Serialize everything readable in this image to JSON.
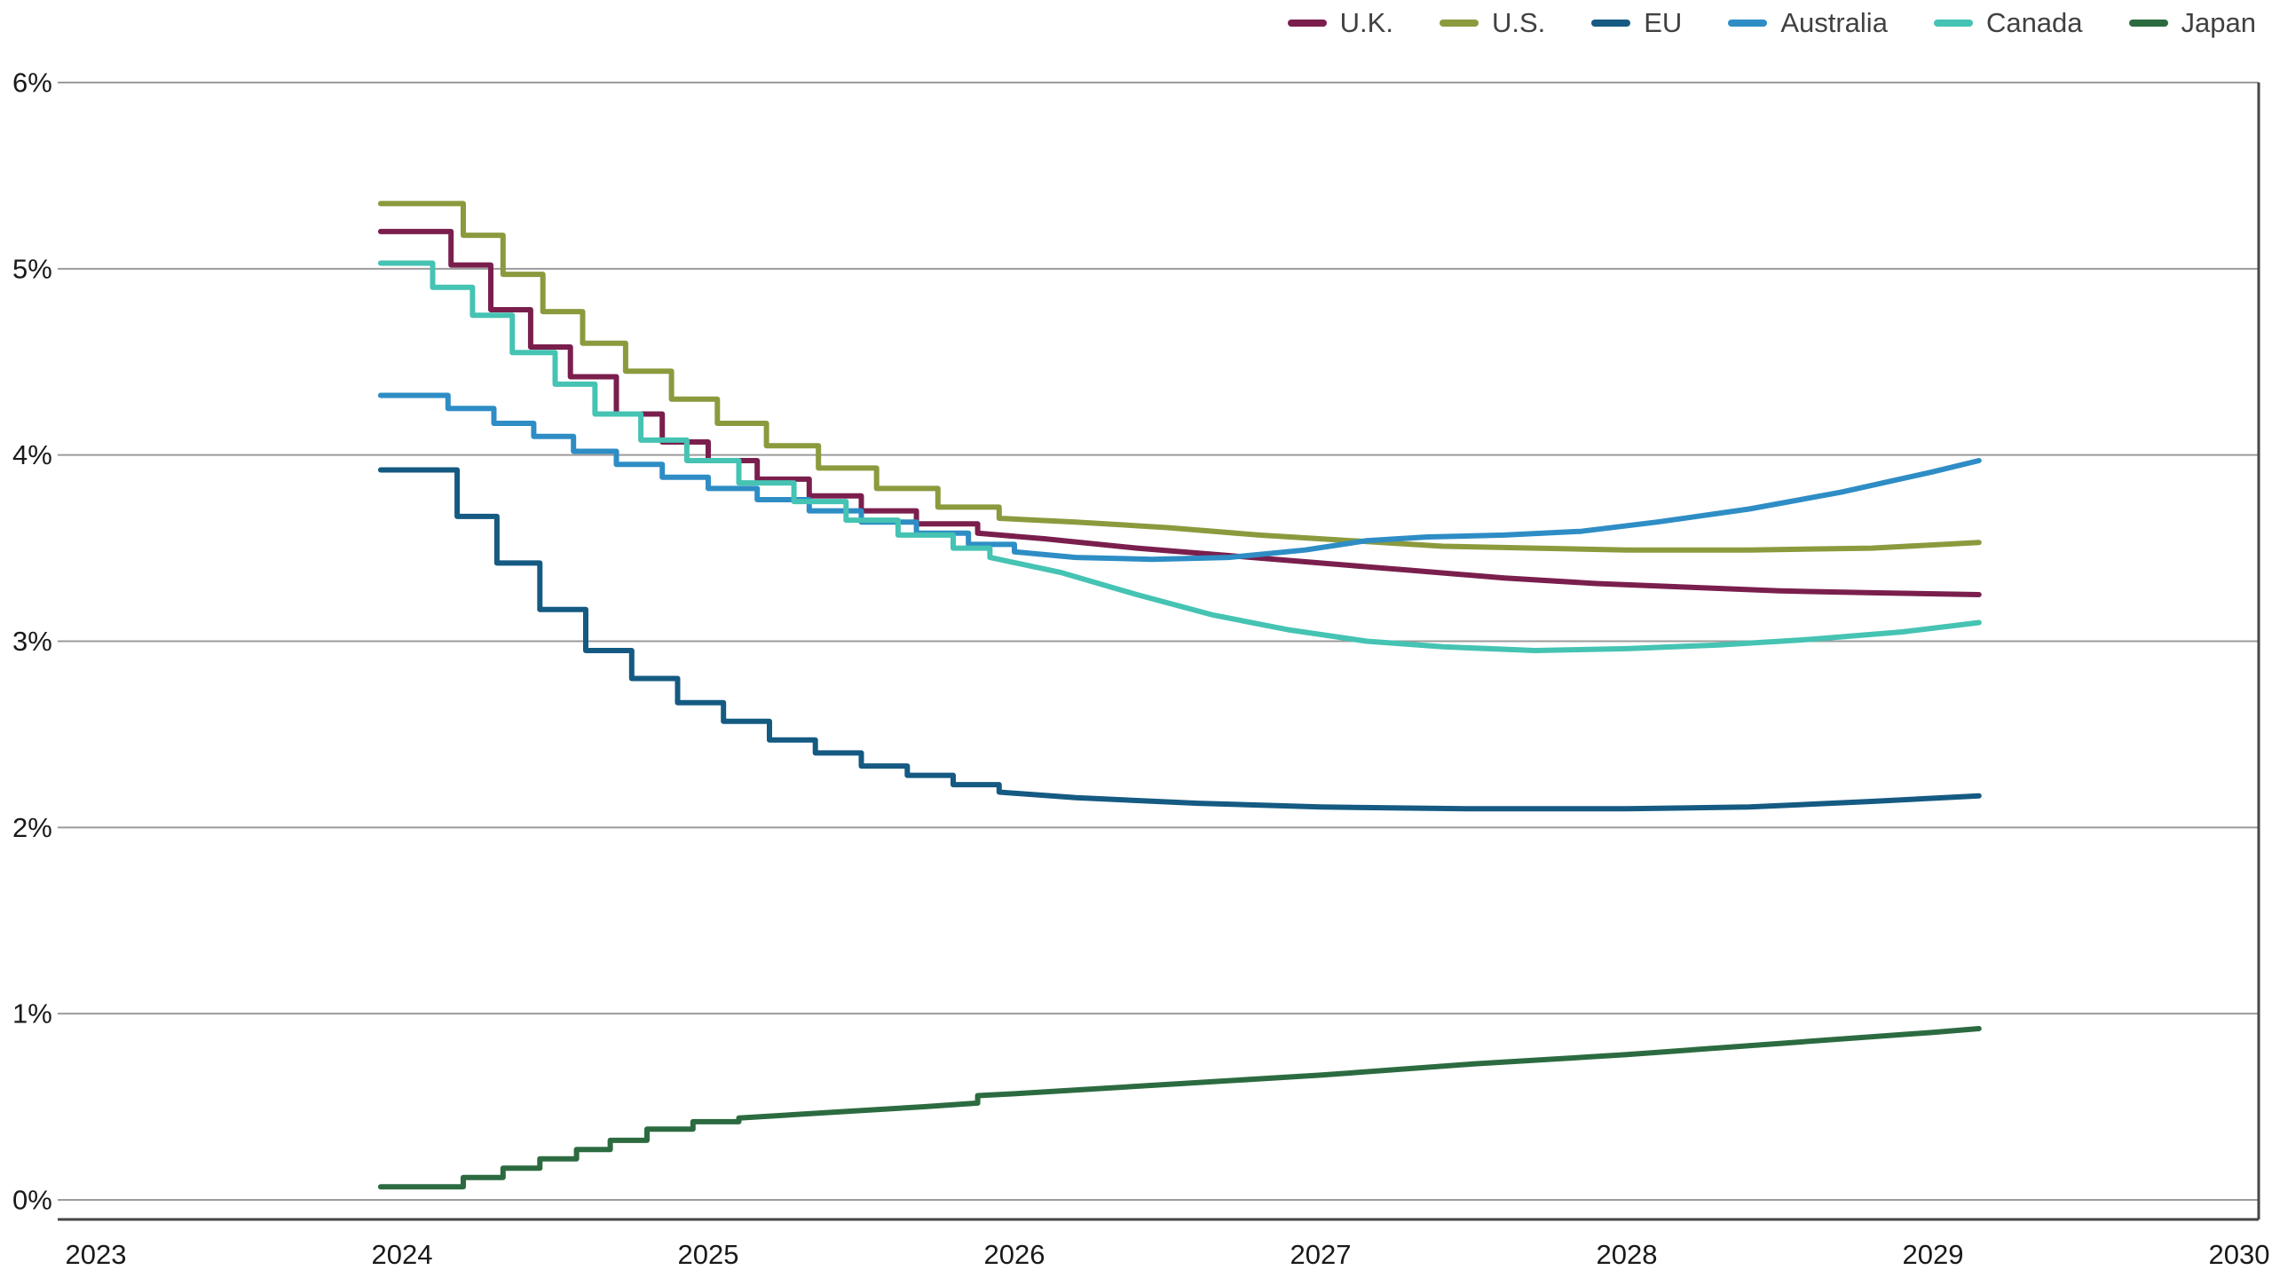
{
  "chart_data": {
    "type": "line",
    "title": "",
    "xlabel": "",
    "ylabel": "",
    "grid": true,
    "legend_position": "top-right",
    "x_axis": {
      "min": 2023,
      "max": 2030,
      "ticks": [
        2023,
        2024,
        2025,
        2026,
        2027,
        2028,
        2029,
        2030
      ]
    },
    "y_axis": {
      "min": 0,
      "max": 6,
      "ticks": [
        {
          "value": 0,
          "label": "0%"
        },
        {
          "value": 1,
          "label": "1%"
        },
        {
          "value": 2,
          "label": "2%"
        },
        {
          "value": 3,
          "label": "3%"
        },
        {
          "value": 4,
          "label": "4%"
        },
        {
          "value": 5,
          "label": "5%"
        },
        {
          "value": 6,
          "label": "6%"
        }
      ]
    },
    "series": [
      {
        "name": "U.K.",
        "color": "#7a1f4d",
        "points": [
          [
            2023.93,
            5.2
          ],
          [
            2024.16,
            5.2
          ],
          [
            2024.16,
            5.02
          ],
          [
            2024.29,
            5.02
          ],
          [
            2024.29,
            4.78
          ],
          [
            2024.42,
            4.78
          ],
          [
            2024.42,
            4.58
          ],
          [
            2024.55,
            4.58
          ],
          [
            2024.55,
            4.42
          ],
          [
            2024.7,
            4.42
          ],
          [
            2024.7,
            4.22
          ],
          [
            2024.85,
            4.22
          ],
          [
            2024.85,
            4.07
          ],
          [
            2025.0,
            4.07
          ],
          [
            2025.0,
            3.97
          ],
          [
            2025.16,
            3.97
          ],
          [
            2025.16,
            3.87
          ],
          [
            2025.33,
            3.87
          ],
          [
            2025.33,
            3.78
          ],
          [
            2025.5,
            3.78
          ],
          [
            2025.5,
            3.7
          ],
          [
            2025.68,
            3.7
          ],
          [
            2025.68,
            3.63
          ],
          [
            2025.88,
            3.63
          ],
          [
            2025.88,
            3.58
          ],
          [
            2026.1,
            3.55
          ],
          [
            2026.4,
            3.5
          ],
          [
            2026.7,
            3.46
          ],
          [
            2027.0,
            3.42
          ],
          [
            2027.3,
            3.38
          ],
          [
            2027.6,
            3.34
          ],
          [
            2027.9,
            3.31
          ],
          [
            2028.2,
            3.29
          ],
          [
            2028.5,
            3.27
          ],
          [
            2028.8,
            3.26
          ],
          [
            2029.15,
            3.25
          ]
        ]
      },
      {
        "name": "U.S.",
        "color": "#8c9a3e",
        "points": [
          [
            2023.93,
            5.35
          ],
          [
            2024.2,
            5.35
          ],
          [
            2024.2,
            5.18
          ],
          [
            2024.33,
            5.18
          ],
          [
            2024.33,
            4.97
          ],
          [
            2024.46,
            4.97
          ],
          [
            2024.46,
            4.77
          ],
          [
            2024.59,
            4.77
          ],
          [
            2024.59,
            4.6
          ],
          [
            2024.73,
            4.6
          ],
          [
            2024.73,
            4.45
          ],
          [
            2024.88,
            4.45
          ],
          [
            2024.88,
            4.3
          ],
          [
            2025.03,
            4.3
          ],
          [
            2025.03,
            4.17
          ],
          [
            2025.19,
            4.17
          ],
          [
            2025.19,
            4.05
          ],
          [
            2025.36,
            4.05
          ],
          [
            2025.36,
            3.93
          ],
          [
            2025.55,
            3.93
          ],
          [
            2025.55,
            3.82
          ],
          [
            2025.75,
            3.82
          ],
          [
            2025.75,
            3.72
          ],
          [
            2025.95,
            3.72
          ],
          [
            2025.95,
            3.66
          ],
          [
            2026.2,
            3.64
          ],
          [
            2026.5,
            3.61
          ],
          [
            2026.8,
            3.57
          ],
          [
            2027.1,
            3.54
          ],
          [
            2027.4,
            3.51
          ],
          [
            2027.7,
            3.5
          ],
          [
            2028.0,
            3.49
          ],
          [
            2028.4,
            3.49
          ],
          [
            2028.8,
            3.5
          ],
          [
            2029.15,
            3.53
          ]
        ]
      },
      {
        "name": "EU",
        "color": "#155a82",
        "points": [
          [
            2023.93,
            3.92
          ],
          [
            2024.18,
            3.92
          ],
          [
            2024.18,
            3.67
          ],
          [
            2024.31,
            3.67
          ],
          [
            2024.31,
            3.42
          ],
          [
            2024.45,
            3.42
          ],
          [
            2024.45,
            3.17
          ],
          [
            2024.6,
            3.17
          ],
          [
            2024.6,
            2.95
          ],
          [
            2024.75,
            2.95
          ],
          [
            2024.75,
            2.8
          ],
          [
            2024.9,
            2.8
          ],
          [
            2024.9,
            2.67
          ],
          [
            2025.05,
            2.67
          ],
          [
            2025.05,
            2.57
          ],
          [
            2025.2,
            2.57
          ],
          [
            2025.2,
            2.47
          ],
          [
            2025.35,
            2.47
          ],
          [
            2025.35,
            2.4
          ],
          [
            2025.5,
            2.4
          ],
          [
            2025.5,
            2.33
          ],
          [
            2025.65,
            2.33
          ],
          [
            2025.65,
            2.28
          ],
          [
            2025.8,
            2.28
          ],
          [
            2025.8,
            2.23
          ],
          [
            2025.95,
            2.23
          ],
          [
            2025.95,
            2.19
          ],
          [
            2026.2,
            2.16
          ],
          [
            2026.6,
            2.13
          ],
          [
            2027.0,
            2.11
          ],
          [
            2027.5,
            2.1
          ],
          [
            2028.0,
            2.1
          ],
          [
            2028.4,
            2.11
          ],
          [
            2028.8,
            2.14
          ],
          [
            2029.15,
            2.17
          ]
        ]
      },
      {
        "name": "Australia",
        "color": "#2e8dc5",
        "points": [
          [
            2023.93,
            4.32
          ],
          [
            2024.15,
            4.32
          ],
          [
            2024.15,
            4.25
          ],
          [
            2024.3,
            4.25
          ],
          [
            2024.3,
            4.17
          ],
          [
            2024.43,
            4.17
          ],
          [
            2024.43,
            4.1
          ],
          [
            2024.56,
            4.1
          ],
          [
            2024.56,
            4.02
          ],
          [
            2024.7,
            4.02
          ],
          [
            2024.7,
            3.95
          ],
          [
            2024.85,
            3.95
          ],
          [
            2024.85,
            3.88
          ],
          [
            2025.0,
            3.88
          ],
          [
            2025.0,
            3.82
          ],
          [
            2025.16,
            3.82
          ],
          [
            2025.16,
            3.76
          ],
          [
            2025.33,
            3.76
          ],
          [
            2025.33,
            3.7
          ],
          [
            2025.5,
            3.7
          ],
          [
            2025.5,
            3.64
          ],
          [
            2025.68,
            3.64
          ],
          [
            2025.68,
            3.58
          ],
          [
            2025.85,
            3.58
          ],
          [
            2025.85,
            3.52
          ],
          [
            2026.0,
            3.52
          ],
          [
            2026.0,
            3.48
          ],
          [
            2026.2,
            3.45
          ],
          [
            2026.45,
            3.44
          ],
          [
            2026.7,
            3.45
          ],
          [
            2026.95,
            3.49
          ],
          [
            2027.15,
            3.54
          ],
          [
            2027.35,
            3.56
          ],
          [
            2027.6,
            3.57
          ],
          [
            2027.85,
            3.59
          ],
          [
            2028.1,
            3.64
          ],
          [
            2028.4,
            3.71
          ],
          [
            2028.7,
            3.8
          ],
          [
            2029.0,
            3.91
          ],
          [
            2029.15,
            3.97
          ]
        ]
      },
      {
        "name": "Canada",
        "color": "#45c3b3",
        "points": [
          [
            2023.93,
            5.03
          ],
          [
            2024.1,
            5.03
          ],
          [
            2024.1,
            4.9
          ],
          [
            2024.23,
            4.9
          ],
          [
            2024.23,
            4.75
          ],
          [
            2024.36,
            4.75
          ],
          [
            2024.36,
            4.55
          ],
          [
            2024.5,
            4.55
          ],
          [
            2024.5,
            4.38
          ],
          [
            2024.63,
            4.38
          ],
          [
            2024.63,
            4.22
          ],
          [
            2024.78,
            4.22
          ],
          [
            2024.78,
            4.08
          ],
          [
            2024.93,
            4.08
          ],
          [
            2024.93,
            3.97
          ],
          [
            2025.1,
            3.97
          ],
          [
            2025.1,
            3.85
          ],
          [
            2025.28,
            3.85
          ],
          [
            2025.28,
            3.75
          ],
          [
            2025.45,
            3.75
          ],
          [
            2025.45,
            3.65
          ],
          [
            2025.62,
            3.65
          ],
          [
            2025.62,
            3.57
          ],
          [
            2025.8,
            3.57
          ],
          [
            2025.8,
            3.5
          ],
          [
            2025.92,
            3.5
          ],
          [
            2025.92,
            3.45
          ],
          [
            2026.15,
            3.37
          ],
          [
            2026.4,
            3.25
          ],
          [
            2026.65,
            3.14
          ],
          [
            2026.9,
            3.06
          ],
          [
            2027.15,
            3.0
          ],
          [
            2027.4,
            2.97
          ],
          [
            2027.7,
            2.95
          ],
          [
            2028.0,
            2.96
          ],
          [
            2028.3,
            2.98
          ],
          [
            2028.6,
            3.01
          ],
          [
            2028.9,
            3.05
          ],
          [
            2029.15,
            3.1
          ]
        ]
      },
      {
        "name": "Japan",
        "color": "#2c6b40",
        "points": [
          [
            2023.93,
            0.07
          ],
          [
            2024.2,
            0.07
          ],
          [
            2024.2,
            0.12
          ],
          [
            2024.33,
            0.12
          ],
          [
            2024.33,
            0.17
          ],
          [
            2024.45,
            0.17
          ],
          [
            2024.45,
            0.22
          ],
          [
            2024.57,
            0.22
          ],
          [
            2024.57,
            0.27
          ],
          [
            2024.68,
            0.27
          ],
          [
            2024.68,
            0.32
          ],
          [
            2024.8,
            0.32
          ],
          [
            2024.8,
            0.38
          ],
          [
            2024.95,
            0.38
          ],
          [
            2024.95,
            0.42
          ],
          [
            2025.1,
            0.42
          ],
          [
            2025.1,
            0.44
          ],
          [
            2025.4,
            0.47
          ],
          [
            2025.7,
            0.5
          ],
          [
            2025.88,
            0.52
          ],
          [
            2025.88,
            0.56
          ],
          [
            2026.0,
            0.57
          ],
          [
            2026.5,
            0.62
          ],
          [
            2027.0,
            0.67
          ],
          [
            2027.5,
            0.73
          ],
          [
            2028.0,
            0.78
          ],
          [
            2028.5,
            0.84
          ],
          [
            2029.0,
            0.9
          ],
          [
            2029.15,
            0.92
          ]
        ]
      }
    ],
    "style": {
      "gridline_color": "#9b9b9b",
      "axis_color": "#464646",
      "tick_label_color": "#191919",
      "legend_label_color": "#414141",
      "background": "#ffffff"
    }
  }
}
